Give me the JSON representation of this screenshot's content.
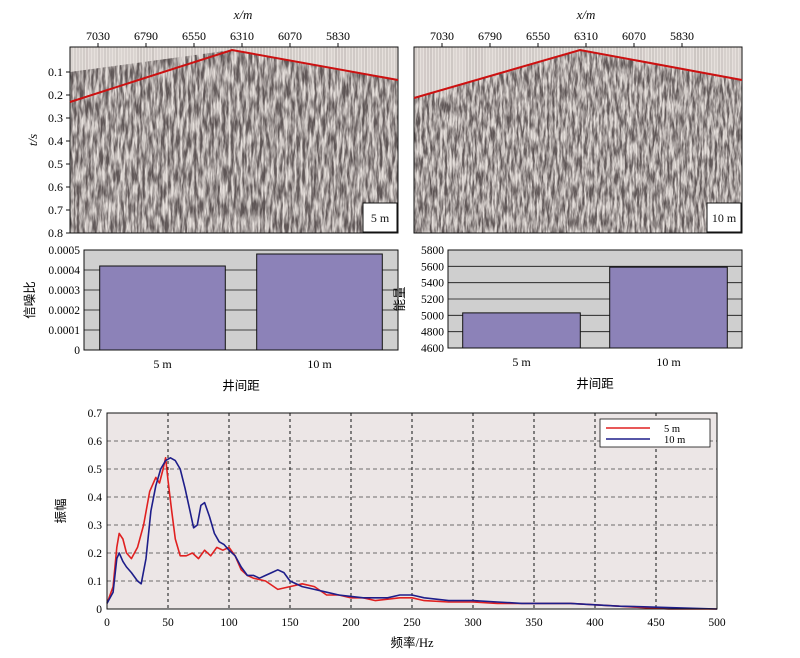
{
  "seismic": {
    "x_axis_label": "x/m",
    "y_axis_label": "t/s",
    "x_ticks": [
      "7030",
      "6790",
      "6550",
      "6310",
      "6070",
      "5830"
    ],
    "t_ticks": [
      "0.1",
      "0.2",
      "0.3",
      "0.4",
      "0.5",
      "0.6",
      "0.7",
      "0.8"
    ],
    "panel_labels": [
      "5 m",
      "10 m"
    ],
    "line_color": "#cc1111"
  },
  "chart_data": [
    {
      "type": "bar",
      "ylabel": "信噪比",
      "xlabel": "井间距",
      "categories": [
        "5 m",
        "10 m"
      ],
      "values": [
        0.00042,
        0.00048
      ],
      "ylim": [
        0,
        0.0005
      ],
      "yticks": [
        "0",
        "0.0001",
        "0.0002",
        "0.0003",
        "0.0004",
        "0.0005"
      ],
      "grid": true,
      "bar_color": "#8c82b8",
      "background": "#cfcfcf"
    },
    {
      "type": "bar",
      "ylabel": "能量",
      "xlabel": "井间距",
      "categories": [
        "5 m",
        "10 m"
      ],
      "values": [
        5030,
        5590
      ],
      "ylim": [
        4600,
        5800
      ],
      "yticks": [
        "4600",
        "4800",
        "5000",
        "5200",
        "5400",
        "5600",
        "5800"
      ],
      "grid": true,
      "bar_color": "#8c82b8",
      "background": "#cfcfcf"
    },
    {
      "type": "line",
      "xlabel": "频率/Hz",
      "ylabel": "振幅",
      "xlim": [
        0,
        500
      ],
      "ylim": [
        0,
        0.7
      ],
      "xticks": [
        "0",
        "50",
        "100",
        "150",
        "200",
        "250",
        "300",
        "350",
        "400",
        "450",
        "500"
      ],
      "yticks": [
        "0",
        "0.1",
        "0.2",
        "0.3",
        "0.4",
        "0.5",
        "0.6",
        "0.7"
      ],
      "grid": true,
      "legend_position": "top-right",
      "background": "#ece6e6",
      "series": [
        {
          "name": "5 m",
          "color": "#e02020",
          "points": [
            [
              0,
              0.02
            ],
            [
              5,
              0.08
            ],
            [
              8,
              0.22
            ],
            [
              10,
              0.27
            ],
            [
              13,
              0.25
            ],
            [
              16,
              0.2
            ],
            [
              20,
              0.18
            ],
            [
              25,
              0.22
            ],
            [
              30,
              0.3
            ],
            [
              35,
              0.42
            ],
            [
              40,
              0.47
            ],
            [
              43,
              0.45
            ],
            [
              46,
              0.5
            ],
            [
              48,
              0.54
            ],
            [
              50,
              0.46
            ],
            [
              53,
              0.35
            ],
            [
              56,
              0.25
            ],
            [
              60,
              0.19
            ],
            [
              65,
              0.19
            ],
            [
              70,
              0.2
            ],
            [
              75,
              0.18
            ],
            [
              80,
              0.21
            ],
            [
              85,
              0.19
            ],
            [
              90,
              0.22
            ],
            [
              95,
              0.21
            ],
            [
              100,
              0.22
            ],
            [
              105,
              0.19
            ],
            [
              110,
              0.14
            ],
            [
              115,
              0.12
            ],
            [
              120,
              0.11
            ],
            [
              130,
              0.1
            ],
            [
              140,
              0.07
            ],
            [
              150,
              0.08
            ],
            [
              160,
              0.09
            ],
            [
              170,
              0.08
            ],
            [
              180,
              0.05
            ],
            [
              190,
              0.05
            ],
            [
              200,
              0.04
            ],
            [
              210,
              0.04
            ],
            [
              220,
              0.03
            ],
            [
              240,
              0.04
            ],
            [
              250,
              0.04
            ],
            [
              260,
              0.03
            ],
            [
              280,
              0.025
            ],
            [
              300,
              0.025
            ],
            [
              320,
              0.02
            ],
            [
              340,
              0.02
            ],
            [
              360,
              0.02
            ],
            [
              380,
              0.02
            ],
            [
              400,
              0.015
            ],
            [
              420,
              0.01
            ],
            [
              440,
              0.005
            ],
            [
              460,
              0.0
            ],
            [
              500,
              0.0
            ]
          ]
        },
        {
          "name": "10 m",
          "color": "#1e1e8a",
          "points": [
            [
              0,
              0.02
            ],
            [
              5,
              0.06
            ],
            [
              8,
              0.18
            ],
            [
              10,
              0.2
            ],
            [
              13,
              0.17
            ],
            [
              16,
              0.15
            ],
            [
              20,
              0.13
            ],
            [
              25,
              0.1
            ],
            [
              28,
              0.09
            ],
            [
              32,
              0.18
            ],
            [
              36,
              0.35
            ],
            [
              40,
              0.44
            ],
            [
              44,
              0.5
            ],
            [
              48,
              0.53
            ],
            [
              52,
              0.54
            ],
            [
              56,
              0.53
            ],
            [
              60,
              0.5
            ],
            [
              64,
              0.43
            ],
            [
              68,
              0.35
            ],
            [
              71,
              0.29
            ],
            [
              74,
              0.3
            ],
            [
              77,
              0.37
            ],
            [
              80,
              0.38
            ],
            [
              84,
              0.33
            ],
            [
              88,
              0.27
            ],
            [
              92,
              0.24
            ],
            [
              96,
              0.23
            ],
            [
              100,
              0.21
            ],
            [
              105,
              0.19
            ],
            [
              110,
              0.15
            ],
            [
              115,
              0.12
            ],
            [
              120,
              0.12
            ],
            [
              125,
              0.11
            ],
            [
              130,
              0.12
            ],
            [
              135,
              0.13
            ],
            [
              140,
              0.14
            ],
            [
              145,
              0.13
            ],
            [
              150,
              0.1
            ],
            [
              160,
              0.08
            ],
            [
              170,
              0.07
            ],
            [
              180,
              0.06
            ],
            [
              190,
              0.05
            ],
            [
              200,
              0.045
            ],
            [
              210,
              0.04
            ],
            [
              220,
              0.04
            ],
            [
              230,
              0.04
            ],
            [
              240,
              0.05
            ],
            [
              250,
              0.05
            ],
            [
              260,
              0.04
            ],
            [
              280,
              0.03
            ],
            [
              300,
              0.03
            ],
            [
              320,
              0.025
            ],
            [
              340,
              0.02
            ],
            [
              360,
              0.02
            ],
            [
              380,
              0.02
            ],
            [
              400,
              0.015
            ],
            [
              420,
              0.01
            ],
            [
              440,
              0.008
            ],
            [
              460,
              0.005
            ],
            [
              500,
              0.0
            ]
          ]
        }
      ]
    }
  ]
}
